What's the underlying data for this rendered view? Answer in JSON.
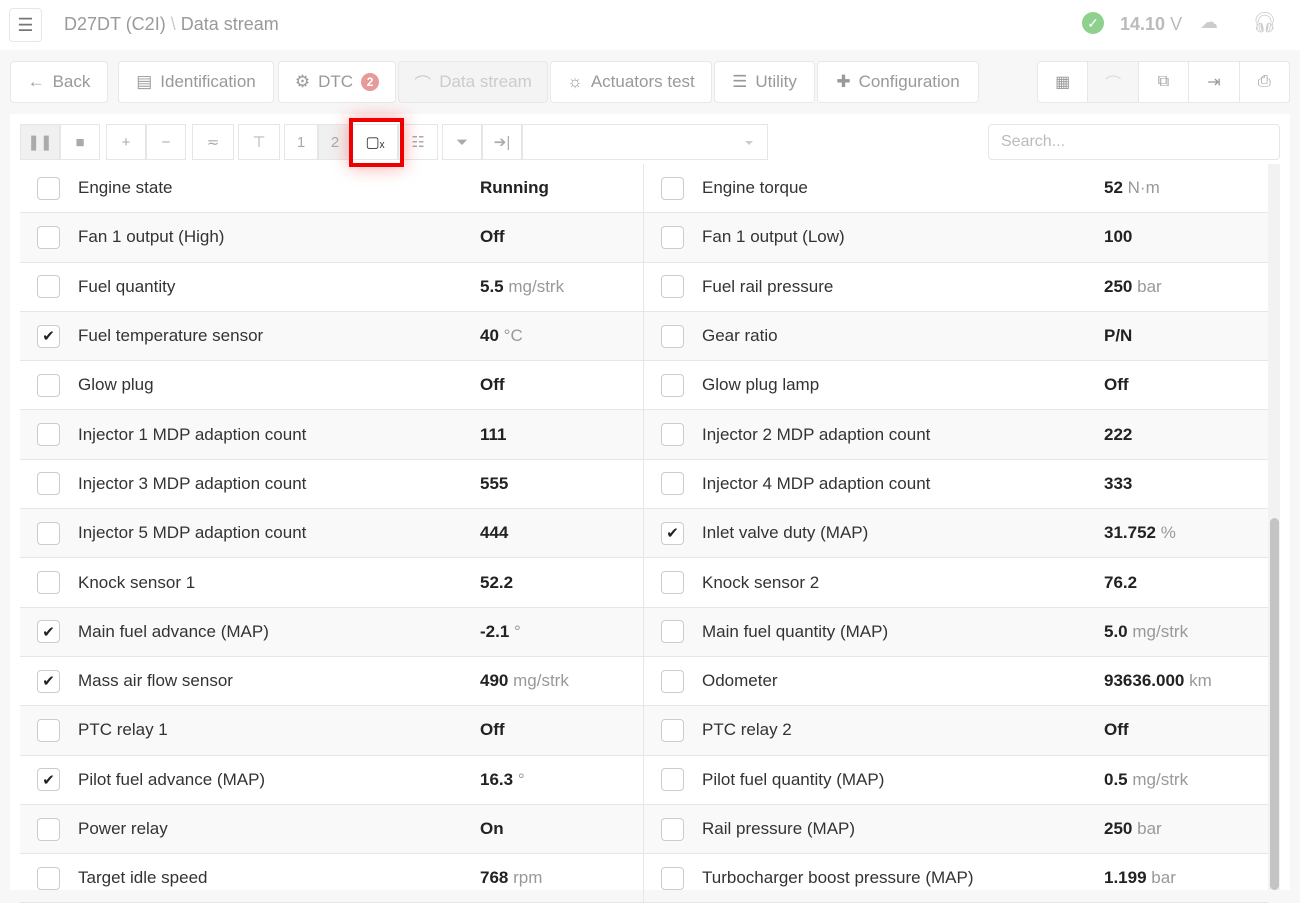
{
  "header": {
    "title": "D27DT (C2I)",
    "separator": "\\",
    "subtitle": "Data stream",
    "voltage": "14.10",
    "voltage_unit": "V"
  },
  "nav": {
    "back": "Back",
    "identification": "Identification",
    "dtc": "DTC",
    "dtc_count": "2",
    "data_stream": "Data stream",
    "actuators": "Actuators test",
    "utility": "Utility",
    "configuration": "Configuration"
  },
  "toolbar": {
    "page1": "1",
    "page2": "2",
    "search_placeholder": "Search..."
  },
  "colors": {
    "highlight": "#ee0000",
    "status_ok": "#8fd08f",
    "badge": "#e69a9a"
  },
  "rows": [
    [
      {
        "label": "Engine state",
        "value": "Running",
        "unit": "",
        "checked": false
      },
      {
        "label": "Engine torque",
        "value": "52",
        "unit": "N·m",
        "checked": false
      }
    ],
    [
      {
        "label": "Fan 1 output (High)",
        "value": "Off",
        "unit": "",
        "checked": false
      },
      {
        "label": "Fan 1 output (Low)",
        "value": "100",
        "unit": "",
        "checked": false
      }
    ],
    [
      {
        "label": "Fuel quantity",
        "value": "5.5",
        "unit": "mg/strk",
        "checked": false
      },
      {
        "label": "Fuel rail pressure",
        "value": "250",
        "unit": "bar",
        "checked": false
      }
    ],
    [
      {
        "label": "Fuel temperature sensor",
        "value": "40",
        "unit": "°C",
        "checked": true
      },
      {
        "label": "Gear ratio",
        "value": "P/N",
        "unit": "",
        "checked": false
      }
    ],
    [
      {
        "label": "Glow plug",
        "value": "Off",
        "unit": "",
        "checked": false
      },
      {
        "label": "Glow plug lamp",
        "value": "Off",
        "unit": "",
        "checked": false
      }
    ],
    [
      {
        "label": "Injector 1 MDP adaption count",
        "value": "111",
        "unit": "",
        "checked": false
      },
      {
        "label": "Injector 2 MDP adaption count",
        "value": "222",
        "unit": "",
        "checked": false
      }
    ],
    [
      {
        "label": "Injector 3 MDP adaption count",
        "value": "555",
        "unit": "",
        "checked": false
      },
      {
        "label": "Injector 4 MDP adaption count",
        "value": "333",
        "unit": "",
        "checked": false
      }
    ],
    [
      {
        "label": "Injector 5 MDP adaption count",
        "value": "444",
        "unit": "",
        "checked": false
      },
      {
        "label": "Inlet valve duty (MAP)",
        "value": "31.752",
        "unit": "%",
        "checked": true
      }
    ],
    [
      {
        "label": "Knock sensor 1",
        "value": "52.2",
        "unit": "",
        "checked": false
      },
      {
        "label": "Knock sensor 2",
        "value": "76.2",
        "unit": "",
        "checked": false
      }
    ],
    [
      {
        "label": "Main fuel advance (MAP)",
        "value": "-2.1",
        "unit": "°",
        "checked": true
      },
      {
        "label": "Main fuel quantity (MAP)",
        "value": "5.0",
        "unit": "mg/strk",
        "checked": false
      }
    ],
    [
      {
        "label": "Mass air flow sensor",
        "value": "490",
        "unit": "mg/strk",
        "checked": true
      },
      {
        "label": "Odometer",
        "value": "93636.000",
        "unit": "km",
        "checked": false
      }
    ],
    [
      {
        "label": "PTC relay 1",
        "value": "Off",
        "unit": "",
        "checked": false
      },
      {
        "label": "PTC relay 2",
        "value": "Off",
        "unit": "",
        "checked": false
      }
    ],
    [
      {
        "label": "Pilot fuel advance (MAP)",
        "value": "16.3",
        "unit": "°",
        "checked": true
      },
      {
        "label": "Pilot fuel quantity (MAP)",
        "value": "0.5",
        "unit": "mg/strk",
        "checked": false
      }
    ],
    [
      {
        "label": "Power relay",
        "value": "On",
        "unit": "",
        "checked": false
      },
      {
        "label": "Rail pressure (MAP)",
        "value": "250",
        "unit": "bar",
        "checked": false
      }
    ],
    [
      {
        "label": "Target idle speed",
        "value": "768",
        "unit": "rpm",
        "checked": false
      },
      {
        "label": "Turbocharger boost pressure (MAP)",
        "value": "1.199",
        "unit": "bar",
        "checked": false
      }
    ]
  ]
}
